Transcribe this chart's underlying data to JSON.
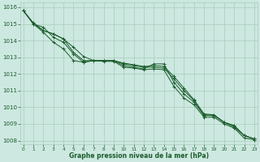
{
  "background_color": "#cce8e0",
  "grid_color": "#aaccbb",
  "line_color": "#1a5c2a",
  "xlabel": "Graphe pression niveau de la mer (hPa)",
  "ylim": [
    1007.8,
    1016.3
  ],
  "xlim": [
    -0.3,
    23.3
  ],
  "yticks": [
    1008,
    1009,
    1010,
    1011,
    1012,
    1013,
    1014,
    1015,
    1016
  ],
  "xticks": [
    0,
    1,
    2,
    3,
    4,
    5,
    6,
    7,
    8,
    9,
    10,
    11,
    12,
    13,
    14,
    15,
    16,
    17,
    18,
    19,
    20,
    21,
    22,
    23
  ],
  "series": [
    [
      1015.8,
      1015.0,
      1014.8,
      1014.2,
      1013.9,
      1013.2,
      1012.7,
      1012.8,
      1012.8,
      1012.8,
      1012.5,
      1012.4,
      1012.3,
      1012.6,
      1012.6,
      1011.5,
      1010.8,
      1010.3,
      1009.5,
      1009.5,
      1009.1,
      1008.8,
      1008.3,
      1008.1
    ],
    [
      1015.8,
      1015.0,
      1014.5,
      1013.9,
      1013.5,
      1012.8,
      1012.7,
      1012.8,
      1012.75,
      1012.75,
      1012.4,
      1012.35,
      1012.25,
      1012.3,
      1012.25,
      1011.25,
      1010.55,
      1010.15,
      1009.4,
      1009.4,
      1009.0,
      1008.75,
      1008.15,
      1008.05
    ],
    [
      1015.8,
      1015.05,
      1014.6,
      1014.4,
      1014.1,
      1013.3,
      1012.8,
      1012.8,
      1012.8,
      1012.8,
      1012.6,
      1012.5,
      1012.4,
      1012.4,
      1012.35,
      1011.7,
      1011.0,
      1010.4,
      1009.55,
      1009.5,
      1009.1,
      1008.9,
      1008.3,
      1008.1
    ],
    [
      1015.8,
      1015.05,
      1014.6,
      1014.4,
      1014.1,
      1013.6,
      1013.05,
      1012.8,
      1012.8,
      1012.8,
      1012.65,
      1012.55,
      1012.45,
      1012.5,
      1012.45,
      1011.85,
      1011.15,
      1010.45,
      1009.6,
      1009.55,
      1009.1,
      1008.9,
      1008.3,
      1008.1
    ]
  ]
}
